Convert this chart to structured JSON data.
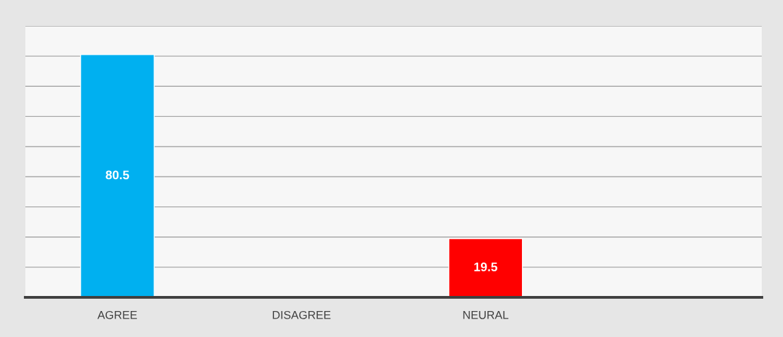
{
  "chart_data": {
    "type": "bar",
    "categories": [
      "AGREE",
      "DISAGREE",
      "NEURAL",
      null
    ],
    "values": [
      80.5,
      null,
      19.5,
      null
    ],
    "colors": [
      "#00b0f0",
      null,
      "#ff0000",
      null
    ],
    "value_labels": [
      "80.5",
      null,
      "19.5",
      null
    ],
    "ylim": [
      0,
      90
    ],
    "yticks": [
      {
        "value": 0,
        "label": null
      },
      {
        "value": 10,
        "label": null
      },
      {
        "value": 20,
        "label": null
      },
      {
        "value": 30,
        "label": null
      },
      {
        "value": 40,
        "label": null
      },
      {
        "value": 50,
        "label": null
      },
      {
        "value": 60,
        "label": null
      },
      {
        "value": 70,
        "label": null
      },
      {
        "value": 80,
        "label": null
      },
      {
        "value": 90,
        "label": null
      }
    ],
    "grid": "y"
  }
}
